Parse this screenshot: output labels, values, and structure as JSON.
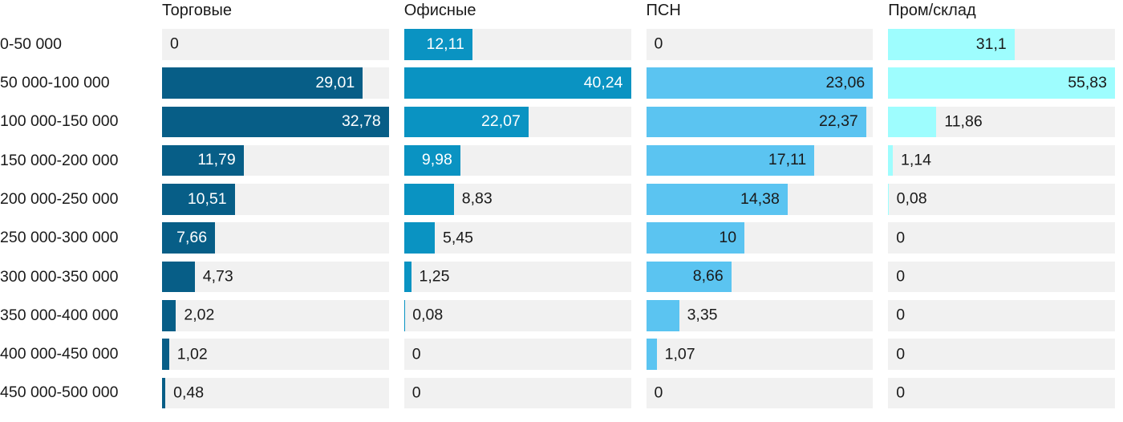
{
  "chart_data": {
    "type": "bar",
    "orientation": "horizontal",
    "title": "",
    "track_color": "#f1f1f1",
    "outside_label_color": "#1a1a1a",
    "scaling": "each column scaled independently to its own max value",
    "categories": [
      "0-50 000",
      "50 000-100 000",
      "100 000-150 000",
      "150 000-200 000",
      "200 000-250 000",
      "250 000-300 000",
      "300 000-350 000",
      "350 000-400 000",
      "400 000-450 000",
      "450 000-500 000"
    ],
    "series": [
      {
        "name": "Торговые",
        "color": "#075e87",
        "inside_label_color": "#ffffff",
        "values": [
          0,
          29.01,
          32.78,
          11.79,
          10.51,
          7.66,
          4.73,
          2.02,
          1.02,
          0.48
        ],
        "labels": [
          "0",
          "29,01",
          "32,78",
          "11,79",
          "10,51",
          "7,66",
          "4,73",
          "2,02",
          "1,02",
          "0,48"
        ]
      },
      {
        "name": "Офисные",
        "color": "#0a93c2",
        "inside_label_color": "#ffffff",
        "values": [
          12.11,
          40.24,
          22.07,
          9.98,
          8.83,
          5.45,
          1.25,
          0.08,
          0,
          0
        ],
        "labels": [
          "12,11",
          "40,24",
          "22,07",
          "9,98",
          "8,83",
          "5,45",
          "1,25",
          "0,08",
          "0",
          "0"
        ]
      },
      {
        "name": "ПСН",
        "color": "#5bc4f1",
        "inside_label_color": "#1a1a1a",
        "values": [
          0,
          23.06,
          22.37,
          17.11,
          14.38,
          10,
          8.66,
          3.35,
          1.07,
          0
        ],
        "labels": [
          "0",
          "23,06",
          "22,37",
          "17,11",
          "14,38",
          "10",
          "8,66",
          "3,35",
          "1,07",
          "0"
        ]
      },
      {
        "name": "Пром/склад",
        "color": "#9efdfe",
        "inside_label_color": "#1a1a1a",
        "values": [
          31.1,
          55.83,
          11.86,
          1.14,
          0.08,
          0,
          0,
          0,
          0,
          0
        ],
        "labels": [
          "31,1",
          "55,83",
          "11,86",
          "1,14",
          "0,08",
          "0",
          "0",
          "0",
          "0",
          "0"
        ]
      }
    ]
  }
}
